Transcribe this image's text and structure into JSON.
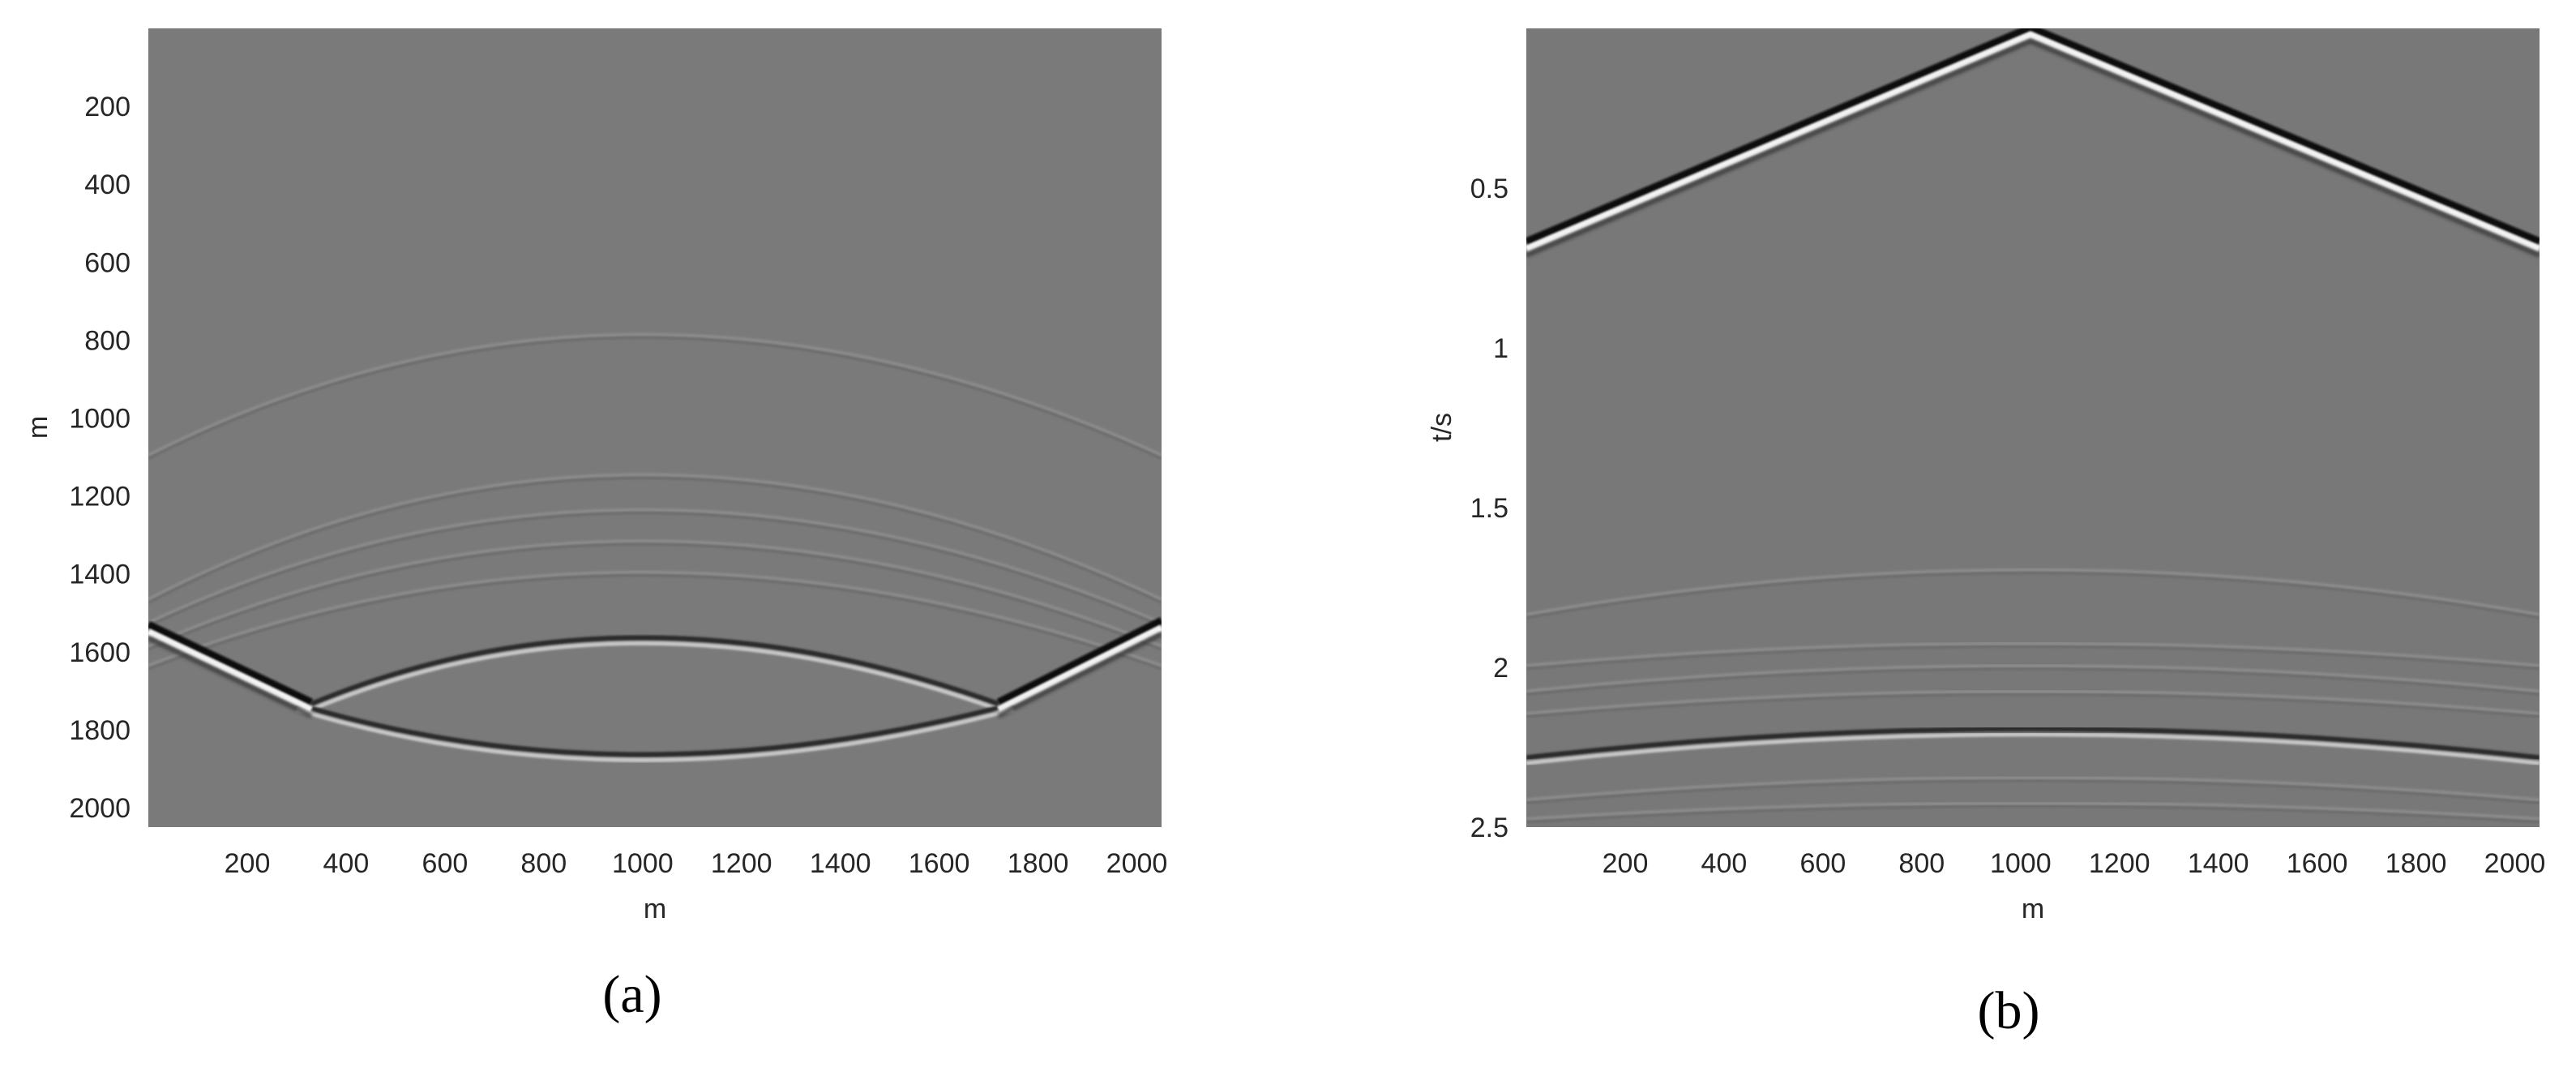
{
  "chart_data": [
    {
      "type": "heatmap",
      "panel_label": "(a)",
      "xlabel": "m",
      "ylabel": "m",
      "xlim": [
        0,
        2050
      ],
      "ylim": [
        0,
        2050
      ],
      "y_reversed": true,
      "xticks": [
        200,
        400,
        600,
        800,
        1000,
        1200,
        1400,
        1600,
        1800,
        2000
      ],
      "yticks": [
        200,
        400,
        600,
        800,
        1000,
        1200,
        1400,
        1600,
        1800,
        2000
      ],
      "colormap": "gray",
      "background": "#7a7a7a",
      "events": [
        {
          "name": "faint arc",
          "kind": "arc",
          "x": [
            0,
            1000,
            2050
          ],
          "y": [
            1100,
            790,
            1100
          ],
          "strength": "weak"
        },
        {
          "name": "arc 2",
          "kind": "arc",
          "x": [
            0,
            1000,
            2050
          ],
          "y": [
            1470,
            1150,
            1470
          ],
          "strength": "weak"
        },
        {
          "name": "arc 3",
          "kind": "arc",
          "x": [
            0,
            1000,
            2050
          ],
          "y": [
            1530,
            1240,
            1530
          ],
          "strength": "weak"
        },
        {
          "name": "arc 4",
          "kind": "arc",
          "x": [
            0,
            1000,
            2050
          ],
          "y": [
            1590,
            1320,
            1590
          ],
          "strength": "weak"
        },
        {
          "name": "arc 5",
          "kind": "arc",
          "x": [
            0,
            1000,
            2050
          ],
          "y": [
            1640,
            1400,
            1640
          ],
          "strength": "weak"
        },
        {
          "name": "inner upper arc",
          "kind": "arc",
          "x": [
            330,
            1000,
            1720
          ],
          "y": [
            1740,
            1570,
            1740
          ],
          "strength": "strong"
        },
        {
          "name": "inner lower arc",
          "kind": "arc",
          "x": [
            300,
            1000,
            1750
          ],
          "y": [
            1740,
            1870,
            1740
          ],
          "strength": "strong"
        },
        {
          "name": "direct wave left",
          "kind": "line",
          "x": [
            0,
            330
          ],
          "y": [
            1540,
            1740
          ],
          "strength": "very strong"
        },
        {
          "name": "direct wave right",
          "kind": "line",
          "x": [
            1720,
            2050
          ],
          "y": [
            1740,
            1530
          ],
          "strength": "very strong"
        }
      ]
    },
    {
      "type": "heatmap",
      "panel_label": "(b)",
      "xlabel": "m",
      "ylabel": "t/s",
      "xlim": [
        0,
        2050
      ],
      "ylim": [
        0,
        2.5
      ],
      "y_reversed": true,
      "xticks": [
        200,
        400,
        600,
        800,
        1000,
        1200,
        1400,
        1600,
        1800,
        2000
      ],
      "yticks": [
        0.5,
        1,
        1.5,
        2,
        2.5
      ],
      "colormap": "gray",
      "background": "#787878",
      "events": [
        {
          "name": "direct arrival",
          "kind": "v",
          "x": [
            0,
            1020,
            2050
          ],
          "y": [
            0.68,
            0.01,
            0.68
          ],
          "strength": "very strong"
        },
        {
          "name": "faint reflection 1",
          "kind": "arc",
          "x": [
            0,
            1020,
            2050
          ],
          "y": [
            1.84,
            1.7,
            1.84
          ],
          "strength": "weak"
        },
        {
          "name": "faint reflection 2",
          "kind": "arc",
          "x": [
            0,
            1020,
            2050
          ],
          "y": [
            2.0,
            1.93,
            2.0
          ],
          "strength": "weak"
        },
        {
          "name": "faint reflection 3",
          "kind": "arc",
          "x": [
            0,
            1020,
            2050
          ],
          "y": [
            2.08,
            2.0,
            2.08
          ],
          "strength": "weak"
        },
        {
          "name": "faint reflection 4",
          "kind": "arc",
          "x": [
            0,
            1020,
            2050
          ],
          "y": [
            2.15,
            2.08,
            2.15
          ],
          "strength": "weak"
        },
        {
          "name": "main reflection",
          "kind": "arc",
          "x": [
            0,
            1020,
            2050
          ],
          "y": [
            2.29,
            2.2,
            2.29
          ],
          "strength": "strong"
        },
        {
          "name": "faint reflection 5",
          "kind": "arc",
          "x": [
            0,
            1020,
            2050
          ],
          "y": [
            2.42,
            2.35,
            2.42
          ],
          "strength": "weak"
        },
        {
          "name": "faint reflection 6",
          "kind": "arc",
          "x": [
            0,
            1020,
            2050
          ],
          "y": [
            2.48,
            2.43,
            2.48
          ],
          "strength": "weak"
        }
      ]
    }
  ]
}
